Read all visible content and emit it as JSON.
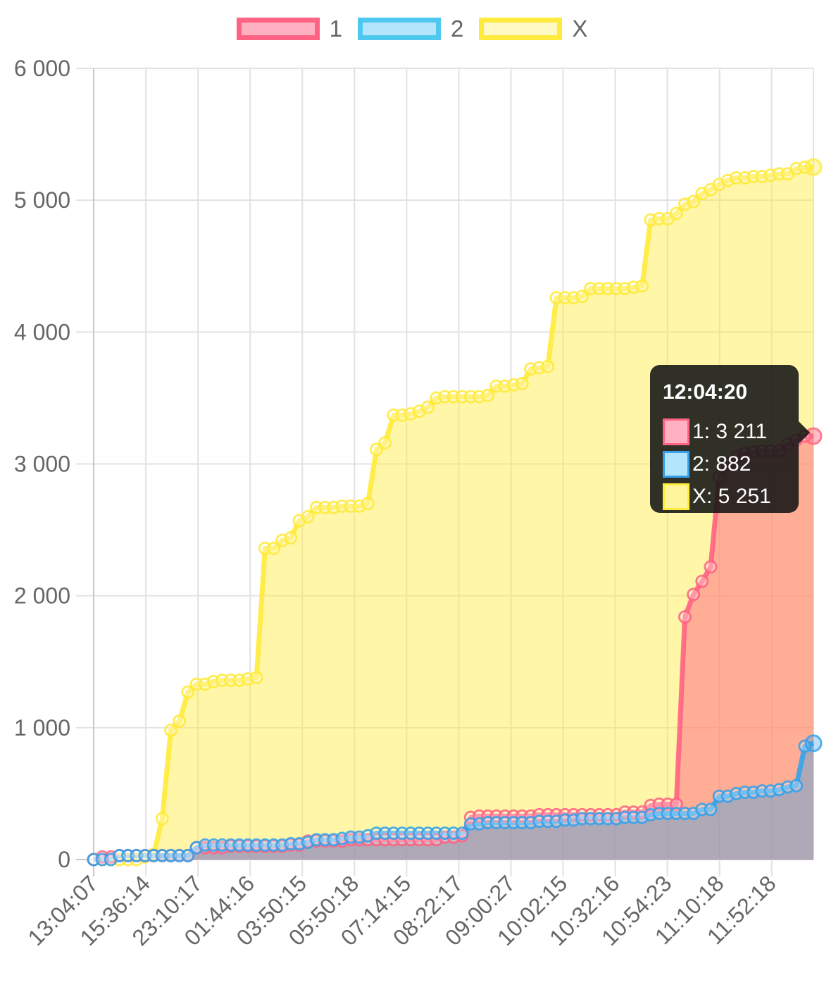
{
  "chart_data": {
    "type": "area",
    "x_tick_labels": [
      "13:04:07",
      "15:36:14",
      "23:10:17",
      "01:44:16",
      "03:50:15",
      "05:50:18",
      "07:14:15",
      "08:22:17",
      "09:00:27",
      "10:02:15",
      "10:32:16",
      "10:54:23",
      "11:10:18",
      "11:52:18"
    ],
    "y_tick_labels": [
      "0",
      "1 000",
      "2 000",
      "3 000",
      "4 000",
      "5 000",
      "6 000"
    ],
    "ylim": [
      0,
      6000
    ],
    "grid": true,
    "legend_position": "top",
    "series": [
      {
        "name": "1",
        "color": "#ff6384",
        "fill": "rgba(255,99,132,0.5)",
        "values": [
          0,
          20,
          20,
          30,
          30,
          30,
          30,
          30,
          30,
          30,
          30,
          30,
          90,
          90,
          90,
          90,
          100,
          100,
          100,
          100,
          100,
          100,
          100,
          110,
          110,
          140,
          140,
          140,
          140,
          140,
          150,
          150,
          150,
          150,
          150,
          150,
          150,
          150,
          150,
          150,
          150,
          170,
          170,
          180,
          320,
          330,
          330,
          330,
          330,
          330,
          330,
          330,
          340,
          340,
          340,
          340,
          340,
          340,
          340,
          340,
          340,
          340,
          360,
          360,
          360,
          410,
          420,
          420,
          420,
          1840,
          2010,
          2110,
          2220,
          2900,
          3000,
          3050,
          3080,
          3090,
          3100,
          3100,
          3100,
          3150,
          3180,
          3211,
          3211
        ]
      },
      {
        "name": "2",
        "color": "#36a2eb",
        "fill": "rgba(54,162,235,0.4)",
        "values": [
          0,
          0,
          0,
          30,
          30,
          30,
          30,
          30,
          30,
          30,
          30,
          30,
          90,
          110,
          110,
          110,
          110,
          110,
          110,
          110,
          110,
          110,
          110,
          120,
          120,
          130,
          150,
          150,
          150,
          160,
          170,
          170,
          180,
          200,
          200,
          200,
          200,
          200,
          200,
          200,
          200,
          200,
          200,
          200,
          270,
          270,
          280,
          280,
          280,
          280,
          280,
          280,
          290,
          290,
          290,
          300,
          300,
          310,
          310,
          310,
          310,
          310,
          320,
          320,
          320,
          340,
          350,
          350,
          350,
          350,
          350,
          380,
          380,
          480,
          480,
          500,
          510,
          510,
          520,
          520,
          530,
          550,
          560,
          860,
          882
        ]
      },
      {
        "name": "X",
        "color": "#ffeb3b",
        "fill": "rgba(255,235,59,0.45)",
        "values": [
          0,
          0,
          0,
          0,
          0,
          0,
          20,
          40,
          310,
          980,
          1050,
          1270,
          1330,
          1330,
          1350,
          1360,
          1360,
          1360,
          1370,
          1380,
          2360,
          2360,
          2420,
          2440,
          2570,
          2600,
          2670,
          2670,
          2670,
          2680,
          2680,
          2680,
          2700,
          3110,
          3160,
          3370,
          3370,
          3380,
          3400,
          3430,
          3500,
          3510,
          3510,
          3510,
          3510,
          3510,
          3520,
          3590,
          3590,
          3600,
          3610,
          3720,
          3730,
          3740,
          4260,
          4260,
          4260,
          4270,
          4330,
          4330,
          4330,
          4330,
          4330,
          4340,
          4350,
          4850,
          4860,
          4860,
          4900,
          4970,
          4990,
          5050,
          5080,
          5120,
          5150,
          5170,
          5170,
          5180,
          5180,
          5190,
          5200,
          5200,
          5240,
          5250,
          5251
        ]
      }
    ],
    "tooltip": {
      "title": "12:04:20",
      "rows": [
        {
          "text": "1: 3 211",
          "border": "#ff6384",
          "fill": "#ffb1c1"
        },
        {
          "text": "2: 882",
          "border": "#36a2eb",
          "fill": "#9ad0f5"
        },
        {
          "text": "X: 5 251",
          "border": "#ffeb3b",
          "fill": "#fff59d"
        }
      ]
    }
  }
}
